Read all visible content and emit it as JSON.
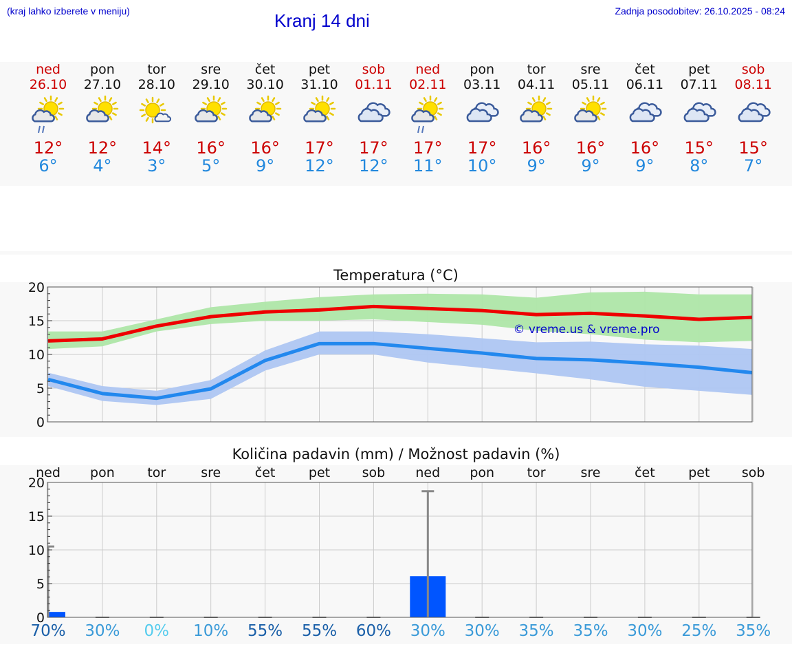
{
  "header": {
    "hint": "(kraj lahko izberete v meniju)",
    "title": "Kranj 14 dni",
    "updated": "Zadnja posodobitev: 26.10.2025 - 08:24"
  },
  "days": [
    {
      "name": "ned",
      "date": "26.10",
      "icon": "sun-cloud-rain-icon",
      "tmax": "12°",
      "tmin": "6°",
      "weekend": true
    },
    {
      "name": "pon",
      "date": "27.10",
      "icon": "sun-cloud-icon",
      "tmax": "12°",
      "tmin": "4°",
      "weekend": false
    },
    {
      "name": "tor",
      "date": "28.10",
      "icon": "sun-small-cloud-icon",
      "tmax": "14°",
      "tmin": "3°",
      "weekend": false
    },
    {
      "name": "sre",
      "date": "29.10",
      "icon": "sun-cloud-icon",
      "tmax": "16°",
      "tmin": "5°",
      "weekend": false
    },
    {
      "name": "čet",
      "date": "30.10",
      "icon": "sun-cloud-icon",
      "tmax": "16°",
      "tmin": "9°",
      "weekend": false
    },
    {
      "name": "pet",
      "date": "31.10",
      "icon": "sun-cloud-icon",
      "tmax": "17°",
      "tmin": "12°",
      "weekend": false
    },
    {
      "name": "sob",
      "date": "01.11",
      "icon": "cloudy-icon",
      "tmax": "17°",
      "tmin": "12°",
      "weekend": true
    },
    {
      "name": "ned",
      "date": "02.11",
      "icon": "sun-cloud-rain-icon",
      "tmax": "17°",
      "tmin": "11°",
      "weekend": true
    },
    {
      "name": "pon",
      "date": "03.11",
      "icon": "cloudy-icon",
      "tmax": "17°",
      "tmin": "10°",
      "weekend": false
    },
    {
      "name": "tor",
      "date": "04.11",
      "icon": "sun-cloud-icon",
      "tmax": "16°",
      "tmin": "9°",
      "weekend": false
    },
    {
      "name": "sre",
      "date": "05.11",
      "icon": "sun-cloud-icon",
      "tmax": "16°",
      "tmin": "9°",
      "weekend": false
    },
    {
      "name": "čet",
      "date": "06.11",
      "icon": "cloudy-icon",
      "tmax": "16°",
      "tmin": "9°",
      "weekend": false
    },
    {
      "name": "pet",
      "date": "07.11",
      "icon": "cloudy-icon",
      "tmax": "15°",
      "tmin": "8°",
      "weekend": false
    },
    {
      "name": "sob",
      "date": "08.11",
      "icon": "cloudy-icon",
      "tmax": "15°",
      "tmin": "7°",
      "weekend": true
    }
  ],
  "colors": {
    "max_line": "#ee0000",
    "max_band": "#aee6a8",
    "min_line": "#2288ee",
    "min_band": "#aec6f2",
    "rain_bar": "#0055ff",
    "error_bar": "#888888",
    "weekend_text": "#cc0000"
  },
  "chart_data": [
    {
      "type": "line",
      "title": "Temperatura (°C)",
      "watermark": "© vreme.us & vreme.pro",
      "grid": true,
      "ylim": [
        0,
        20
      ],
      "yticks": [
        0,
        5,
        10,
        15,
        20
      ],
      "series": [
        {
          "name": "max",
          "values": [
            12,
            12.3,
            14.2,
            15.6,
            16.3,
            16.6,
            17.1,
            16.8,
            16.5,
            15.9,
            16.1,
            15.7,
            15.2,
            15.5
          ],
          "band_low": [
            10.8,
            11.2,
            13.4,
            14.5,
            15,
            15,
            15.2,
            14.8,
            14.4,
            13.5,
            13,
            12.2,
            11.8,
            12
          ],
          "band_high": [
            13.4,
            13.4,
            15.2,
            17,
            17.8,
            18.5,
            18.9,
            19,
            18.9,
            18.4,
            19.2,
            19.3,
            18.9,
            18.9
          ]
        },
        {
          "name": "min",
          "values": [
            6.3,
            4.2,
            3.5,
            4.9,
            9.1,
            11.6,
            11.6,
            10.9,
            10.2,
            9.4,
            9.2,
            8.7,
            8.1,
            7.3
          ],
          "band_low": [
            5.3,
            3.1,
            2.5,
            3.4,
            7.6,
            10,
            10,
            8.8,
            8,
            7.2,
            6.3,
            5.2,
            4.6,
            4
          ],
          "band_high": [
            7.3,
            5.3,
            4.6,
            6.2,
            10.6,
            13.4,
            13.4,
            13,
            12.4,
            11.8,
            11.9,
            11.5,
            11.3,
            10.8
          ]
        }
      ]
    },
    {
      "type": "bar",
      "title": "Količina padavin (mm) / Možnost padavin (%)",
      "grid": true,
      "ylim": [
        0,
        20
      ],
      "yticks": [
        0,
        5,
        10,
        15,
        20
      ],
      "categories": [
        "ned",
        "pon",
        "tor",
        "sre",
        "čet",
        "pet",
        "sob",
        "ned",
        "pon",
        "tor",
        "sre",
        "čet",
        "pet",
        "sob"
      ],
      "values": [
        0.8,
        0,
        0,
        0,
        0,
        0,
        0,
        6.1,
        0,
        0,
        0,
        0,
        0,
        0
      ],
      "error_high": [
        10.5,
        0,
        0,
        0,
        0,
        0,
        0,
        18.7,
        0,
        0,
        0,
        0,
        0,
        0
      ],
      "probability": [
        "70%",
        "30%",
        "0%",
        "10%",
        "55%",
        "55%",
        "60%",
        "30%",
        "30%",
        "35%",
        "35%",
        "30%",
        "25%",
        "35%"
      ]
    }
  ]
}
